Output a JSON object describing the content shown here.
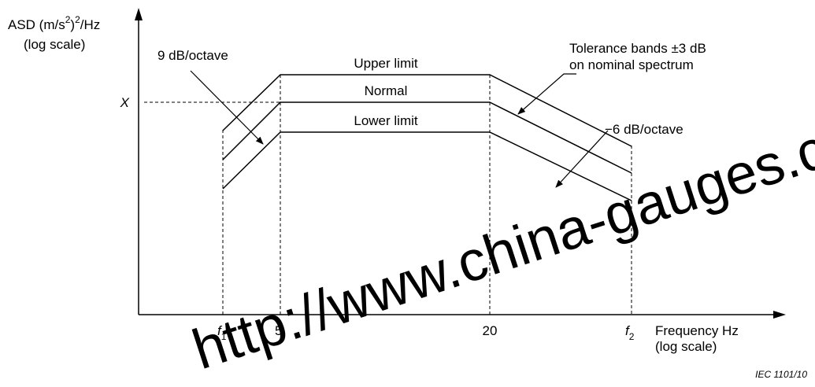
{
  "chart_data": {
    "type": "line",
    "y_axis": {
      "label_main": "ASD (m/s",
      "label_sup1": "2",
      "label_paren": ")",
      "label_sup2": "2",
      "label_tail": "/Hz",
      "label_scale": "(log scale)",
      "tick_label": "X"
    },
    "x_axis": {
      "label": "Frequency  Hz",
      "label_scale": "(log scale)",
      "ticks": [
        {
          "id": "f1",
          "base": "f",
          "sub": "1"
        },
        {
          "id": "5",
          "base": "5",
          "sub": ""
        },
        {
          "id": "20",
          "base": "20",
          "sub": ""
        },
        {
          "id": "f2",
          "base": "f",
          "sub": "2"
        }
      ]
    },
    "series": [
      {
        "name": "Upper limit",
        "offset_db": 3,
        "points": [
          [
            "f1",
            0.58
          ],
          [
            "5",
            1
          ],
          [
            "20",
            1
          ],
          [
            "f2",
            0.71
          ]
        ]
      },
      {
        "name": "Normal",
        "offset_db": 0,
        "points": [
          [
            "f1",
            0.58
          ],
          [
            "5",
            1
          ],
          [
            "20",
            1
          ],
          [
            "f2",
            0.71
          ]
        ]
      },
      {
        "name": "Lower limit",
        "offset_db": -3,
        "points": [
          [
            "f1",
            0.58
          ],
          [
            "5",
            1
          ],
          [
            "20",
            1
          ],
          [
            "f2",
            0.71
          ]
        ]
      }
    ],
    "annotations": {
      "slope_up": "9 dB/octave",
      "slope_down": "−6 dB/octave",
      "tolerance_line1": "Tolerance bands ±3 dB",
      "tolerance_line2": "on nominal spectrum"
    },
    "grid": false,
    "legend": "none"
  },
  "credit": "IEC  1101/10",
  "watermark": "http://www.china-gauges.c"
}
